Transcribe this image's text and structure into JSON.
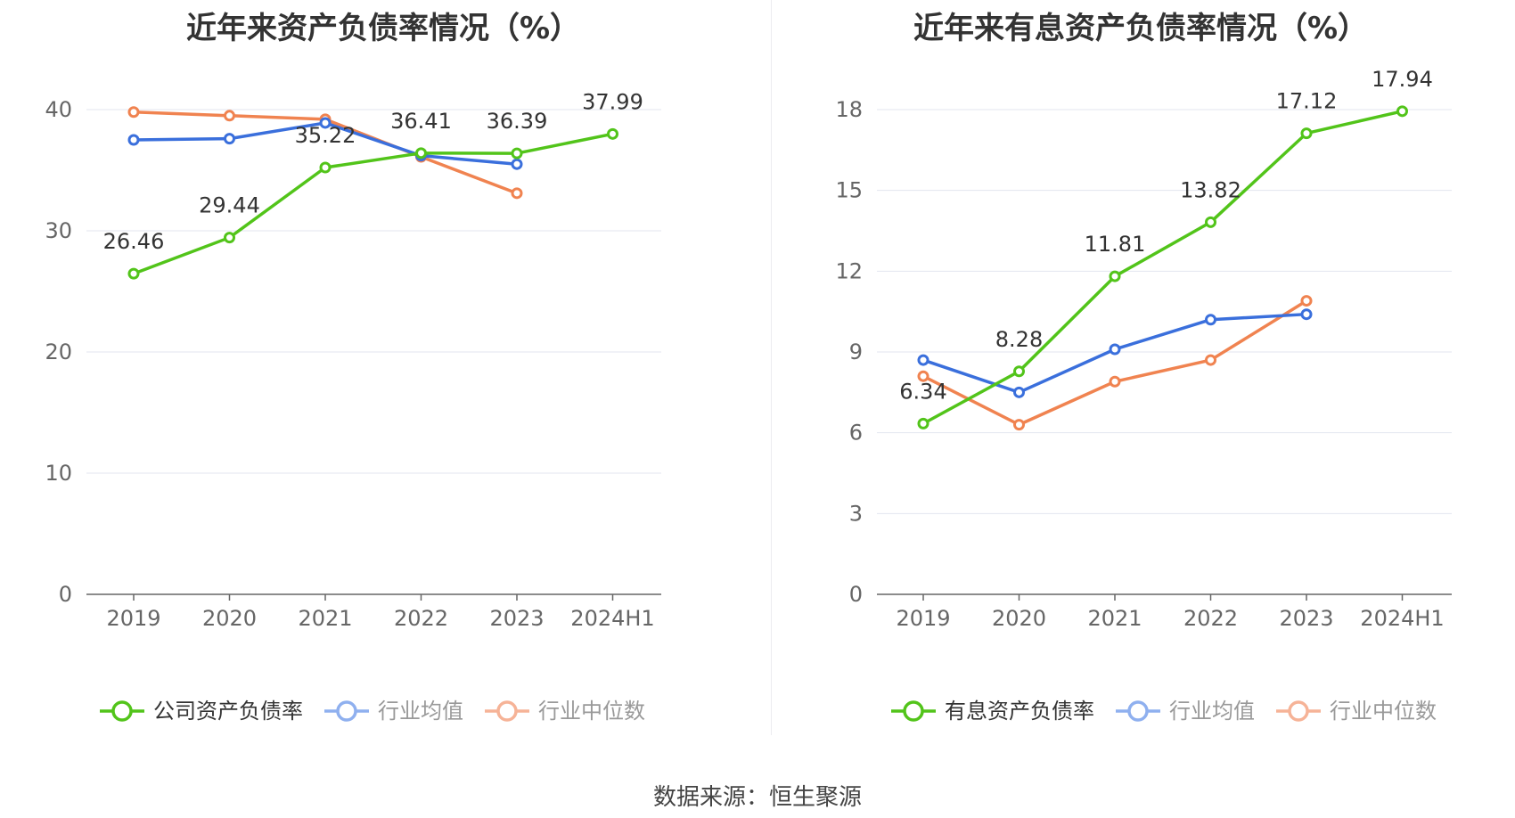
{
  "source_label": "数据来源：恒生聚源",
  "chart_data": [
    {
      "type": "line",
      "title": "近年来资产负债率情况（%）",
      "categories": [
        "2019",
        "2020",
        "2021",
        "2022",
        "2023",
        "2024H1"
      ],
      "ylim": [
        0,
        40
      ],
      "yticks": [
        0,
        10,
        20,
        30,
        40
      ],
      "grid": true,
      "legend_position": "bottom",
      "series": [
        {
          "name": "公司资产负债率",
          "color": "#52c41a",
          "show_labels": true,
          "values": [
            26.46,
            29.44,
            35.22,
            36.41,
            36.39,
            37.99
          ]
        },
        {
          "name": "行业均值",
          "color": "#3a6fdc",
          "show_labels": false,
          "values": [
            37.5,
            37.6,
            38.9,
            36.2,
            35.5,
            null
          ]
        },
        {
          "name": "行业中位数",
          "color": "#f08350",
          "show_labels": false,
          "values": [
            39.8,
            39.5,
            39.2,
            36.1,
            33.1,
            null
          ]
        }
      ]
    },
    {
      "type": "line",
      "title": "近年来有息资产负债率情况（%）",
      "categories": [
        "2019",
        "2020",
        "2021",
        "2022",
        "2023",
        "2024H1"
      ],
      "ylim": [
        0,
        18
      ],
      "yticks": [
        0,
        3,
        6,
        9,
        12,
        15,
        18
      ],
      "grid": true,
      "legend_position": "bottom",
      "series": [
        {
          "name": "有息资产负债率",
          "color": "#52c41a",
          "show_labels": true,
          "values": [
            6.34,
            8.28,
            11.81,
            13.82,
            17.12,
            17.94
          ]
        },
        {
          "name": "行业均值",
          "color": "#3a6fdc",
          "show_labels": false,
          "values": [
            8.7,
            7.5,
            9.1,
            10.2,
            10.4,
            null
          ]
        },
        {
          "name": "行业中位数",
          "color": "#f08350",
          "show_labels": false,
          "values": [
            8.1,
            6.3,
            7.9,
            8.7,
            10.9,
            null
          ]
        }
      ]
    }
  ]
}
